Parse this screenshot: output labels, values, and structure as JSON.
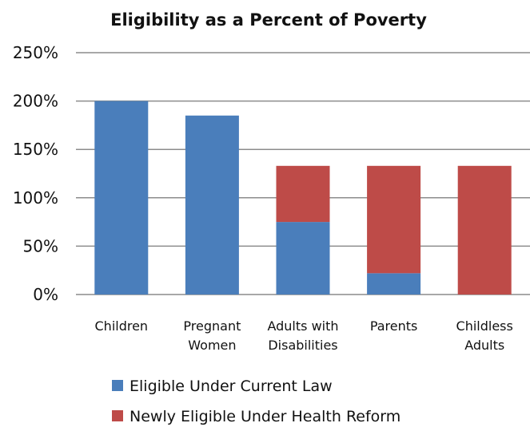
{
  "chart_data": {
    "type": "bar",
    "stacked": true,
    "title": "Eligibility as a Percent of Poverty",
    "xlabel": "",
    "ylabel": "",
    "ylim": [
      0,
      250
    ],
    "yticks": [
      0,
      50,
      100,
      150,
      200,
      250
    ],
    "ytick_labels": [
      "0%",
      "50%",
      "100%",
      "150%",
      "200%",
      "250%"
    ],
    "grid": true,
    "legend_position": "bottom-left",
    "categories": [
      [
        "Children"
      ],
      [
        "Pregnant",
        "Women"
      ],
      [
        "Adults with",
        "Disabilities"
      ],
      [
        "Parents"
      ],
      [
        "Childless",
        "Adults"
      ]
    ],
    "series": [
      {
        "name": "Eligible Under Current Law",
        "color": "#4a7ebb",
        "values": [
          200,
          185,
          75,
          22,
          0
        ]
      },
      {
        "name": "Newly Eligible Under Health Reform",
        "color": "#be4b48",
        "values": [
          0,
          0,
          58,
          111,
          133
        ]
      }
    ]
  }
}
